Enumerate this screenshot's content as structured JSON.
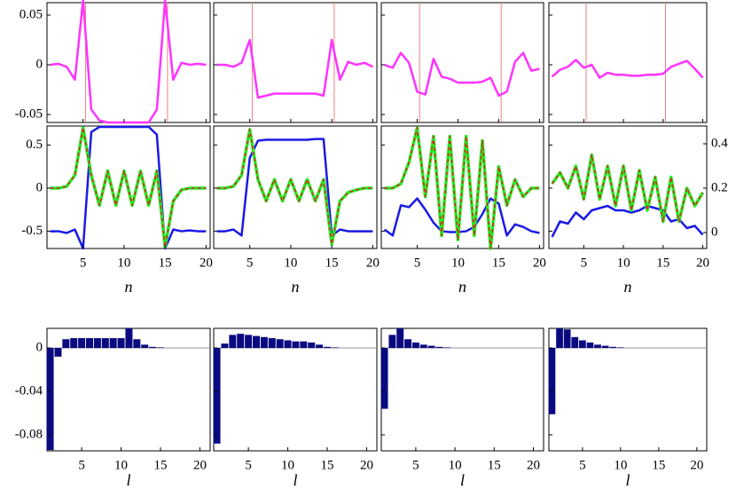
{
  "chart_data": [
    {
      "type": "line",
      "x": [
        1,
        2,
        3,
        4,
        5,
        6,
        7,
        8,
        9,
        10,
        11,
        12,
        13,
        14,
        15,
        16,
        17,
        18,
        19,
        20
      ],
      "xlim": [
        0.6,
        20.5
      ],
      "xticks": [
        5,
        10,
        15,
        20
      ],
      "ylim": [
        -0.058,
        0.0625
      ],
      "yticks": [
        -0.05,
        0,
        0.05
      ],
      "ytick_labels": true,
      "xtick_labels": false,
      "vlines": [
        5.3,
        15.3
      ],
      "vline_color": "#f08080",
      "series": [
        {
          "color": "#ff33ff",
          "values": [
            0,
            0.001,
            -0.002,
            -0.015,
            0.065,
            -0.045,
            -0.056,
            -0.058,
            -0.058,
            -0.058,
            -0.058,
            -0.058,
            -0.058,
            -0.045,
            0.065,
            -0.015,
            0.002,
            0,
            0.001,
            0
          ]
        }
      ]
    },
    {
      "type": "line",
      "x": [
        1,
        2,
        3,
        4,
        5,
        6,
        7,
        8,
        9,
        10,
        11,
        12,
        13,
        14,
        15,
        16,
        17,
        18,
        19,
        20
      ],
      "xlim": [
        0.6,
        20.5
      ],
      "xticks": [
        5,
        10,
        15,
        20
      ],
      "ylim": [
        -0.058,
        0.0625
      ],
      "yticks": [
        -0.05,
        0,
        0.05
      ],
      "ytick_labels": false,
      "xtick_labels": false,
      "vlines": [
        5.3,
        15.3
      ],
      "vline_color": "#f08080",
      "series": [
        {
          "color": "#ff33ff",
          "values": [
            0,
            0,
            -0.002,
            0.002,
            0.025,
            -0.033,
            -0.031,
            -0.029,
            -0.029,
            -0.029,
            -0.029,
            -0.029,
            -0.029,
            -0.031,
            0.025,
            -0.015,
            0.003,
            0,
            0.002,
            -0.002
          ]
        }
      ]
    },
    {
      "type": "line",
      "x": [
        1,
        2,
        3,
        4,
        5,
        6,
        7,
        8,
        9,
        10,
        11,
        12,
        13,
        14,
        15,
        16,
        17,
        18,
        19,
        20
      ],
      "xlim": [
        0.6,
        20.5
      ],
      "xticks": [
        5,
        10,
        15,
        20
      ],
      "ylim": [
        -0.058,
        0.0625
      ],
      "yticks": [
        -0.05,
        0,
        0.05
      ],
      "ytick_labels": false,
      "xtick_labels": false,
      "vlines": [
        5.3,
        15.3
      ],
      "vline_color": "#f08080",
      "series": [
        {
          "color": "#ff33ff",
          "values": [
            0,
            -0.003,
            0.012,
            0.002,
            -0.027,
            -0.03,
            0.006,
            -0.012,
            -0.014,
            -0.018,
            -0.018,
            -0.018,
            -0.017,
            -0.013,
            -0.031,
            -0.027,
            0.003,
            0.012,
            -0.006,
            -0.004
          ]
        }
      ]
    },
    {
      "type": "line",
      "x": [
        1,
        2,
        3,
        4,
        5,
        6,
        7,
        8,
        9,
        10,
        11,
        12,
        13,
        14,
        15,
        16,
        17,
        18,
        19,
        20
      ],
      "xlim": [
        0.6,
        20.5
      ],
      "xticks": [
        5,
        10,
        15,
        20
      ],
      "ylim": [
        -0.058,
        0.0625
      ],
      "yticks": [
        -0.05,
        0,
        0.05
      ],
      "ytick_labels": false,
      "xtick_labels": false,
      "vlines": [
        5.3,
        15.3
      ],
      "vline_color": "#f08080",
      "series": [
        {
          "color": "#ff33ff",
          "values": [
            -0.012,
            -0.005,
            -0.002,
            0.005,
            -0.003,
            0,
            -0.013,
            -0.008,
            -0.01,
            -0.01,
            -0.011,
            -0.011,
            -0.01,
            -0.01,
            -0.009,
            -0.002,
            0.001,
            0.004,
            -0.004,
            -0.013
          ]
        }
      ]
    },
    {
      "type": "line",
      "x": [
        1,
        2,
        3,
        4,
        5,
        6,
        7,
        8,
        9,
        10,
        11,
        12,
        13,
        14,
        15,
        16,
        17,
        18,
        19,
        20
      ],
      "xlim": [
        0.6,
        20.5
      ],
      "xticks": [
        5,
        10,
        15,
        20
      ],
      "ylim": [
        -0.7,
        0.72
      ],
      "yticks": [
        -0.5,
        0,
        0.5
      ],
      "ytick_labels": true,
      "xtick_labels": true,
      "x_label": "n",
      "series": [
        {
          "color": "#1a1ae6",
          "values": [
            -0.5,
            -0.5,
            -0.52,
            -0.48,
            -0.7,
            0.65,
            0.71,
            0.71,
            0.71,
            0.71,
            0.71,
            0.71,
            0.71,
            0.62,
            -0.7,
            -0.48,
            -0.5,
            -0.49,
            -0.5,
            -0.5
          ]
        },
        {
          "color": "#22ee22",
          "width": 3.5,
          "values": [
            0,
            0,
            0.02,
            0.15,
            0.7,
            0.15,
            -0.2,
            0.2,
            -0.2,
            0.2,
            -0.2,
            0.2,
            -0.2,
            0.2,
            -0.68,
            -0.15,
            -0.02,
            0,
            0,
            0
          ]
        },
        {
          "color": "#cc3322",
          "dashed": true,
          "values": [
            0,
            0,
            0.02,
            0.15,
            0.7,
            0.15,
            -0.2,
            0.2,
            -0.2,
            0.2,
            -0.2,
            0.2,
            -0.2,
            0.2,
            -0.68,
            -0.15,
            -0.02,
            0,
            0,
            0
          ]
        }
      ]
    },
    {
      "type": "line",
      "x": [
        1,
        2,
        3,
        4,
        5,
        6,
        7,
        8,
        9,
        10,
        11,
        12,
        13,
        14,
        15,
        16,
        17,
        18,
        19,
        20
      ],
      "xlim": [
        0.6,
        20.5
      ],
      "xticks": [
        5,
        10,
        15,
        20
      ],
      "ylim": [
        -0.7,
        0.72
      ],
      "yticks": [
        -0.5,
        0,
        0.5
      ],
      "ytick_labels": false,
      "xtick_labels": true,
      "x_label": "n",
      "series": [
        {
          "color": "#1a1ae6",
          "values": [
            -0.5,
            -0.5,
            -0.48,
            -0.55,
            0.35,
            0.55,
            0.56,
            0.56,
            0.56,
            0.56,
            0.56,
            0.56,
            0.57,
            0.57,
            -0.55,
            -0.48,
            -0.5,
            -0.5,
            -0.5,
            -0.5
          ]
        },
        {
          "color": "#22ee22",
          "width": 3.5,
          "values": [
            0,
            0,
            0.02,
            0.15,
            0.68,
            0.1,
            -0.15,
            0.1,
            -0.15,
            0.1,
            -0.15,
            0.1,
            -0.15,
            0.1,
            -0.65,
            -0.15,
            -0.05,
            -0.02,
            0,
            0
          ]
        },
        {
          "color": "#cc3322",
          "dashed": true,
          "values": [
            0,
            0,
            0.02,
            0.15,
            0.68,
            0.1,
            -0.15,
            0.1,
            -0.15,
            0.1,
            -0.15,
            0.1,
            -0.15,
            0.1,
            -0.65,
            -0.15,
            -0.05,
            -0.02,
            0,
            0
          ]
        }
      ]
    },
    {
      "type": "line",
      "x": [
        1,
        2,
        3,
        4,
        5,
        6,
        7,
        8,
        9,
        10,
        11,
        12,
        13,
        14,
        15,
        16,
        17,
        18,
        19,
        20
      ],
      "xlim": [
        0.6,
        20.5
      ],
      "xticks": [
        5,
        10,
        15,
        20
      ],
      "ylim": [
        -0.7,
        0.72
      ],
      "yticks": [
        -0.5,
        0,
        0.5
      ],
      "ytick_labels": false,
      "xtick_labels": true,
      "x_label": "n",
      "series": [
        {
          "color": "#1a1ae6",
          "values": [
            -0.48,
            -0.55,
            -0.2,
            -0.22,
            -0.12,
            -0.25,
            -0.4,
            -0.5,
            -0.51,
            -0.51,
            -0.5,
            -0.45,
            -0.3,
            -0.12,
            -0.18,
            -0.55,
            -0.42,
            -0.45,
            -0.5,
            -0.52
          ]
        },
        {
          "color": "#22ee22",
          "width": 3.5,
          "values": [
            0,
            0,
            0.05,
            0.3,
            0.7,
            -0.1,
            0.6,
            -0.55,
            0.6,
            -0.6,
            0.6,
            -0.55,
            0.55,
            -0.7,
            0.25,
            -0.2,
            0.1,
            -0.1,
            0,
            0
          ]
        },
        {
          "color": "#cc3322",
          "dashed": true,
          "values": [
            0,
            0,
            0.05,
            0.3,
            0.7,
            -0.1,
            0.6,
            -0.55,
            0.6,
            -0.6,
            0.6,
            -0.55,
            0.55,
            -0.7,
            0.25,
            -0.2,
            0.1,
            -0.1,
            0,
            0
          ]
        }
      ]
    },
    {
      "type": "line",
      "x": [
        1,
        2,
        3,
        4,
        5,
        6,
        7,
        8,
        9,
        10,
        11,
        12,
        13,
        14,
        15,
        16,
        17,
        18,
        19,
        20
      ],
      "xlim": [
        0.6,
        20.5
      ],
      "xticks": [
        5,
        10,
        15,
        20
      ],
      "ylim": [
        -0.7,
        0.72
      ],
      "yticks": [
        -0.5,
        0,
        0.5
      ],
      "ytick_labels": false,
      "xtick_labels": true,
      "x_label": "n",
      "y2lim": [
        -0.072,
        0.48
      ],
      "y2ticks": [
        0,
        0.2,
        0.4
      ],
      "series": [
        {
          "color": "#1a1ae6",
          "axis": "y2",
          "values": [
            -0.02,
            0.05,
            0.04,
            0.09,
            0.06,
            0.1,
            0.11,
            0.12,
            0.1,
            0.1,
            0.09,
            0.1,
            0.12,
            0.11,
            0.1,
            0.05,
            0.06,
            0.02,
            0.03,
            -0.01
          ]
        },
        {
          "color": "#22ee22",
          "width": 3.5,
          "axis": "y2",
          "values": [
            0.22,
            0.27,
            0.2,
            0.3,
            0.15,
            0.35,
            0.15,
            0.3,
            0.12,
            0.3,
            0.1,
            0.28,
            0.1,
            0.25,
            0.05,
            0.25,
            0.05,
            0.2,
            0.12,
            0.18
          ]
        },
        {
          "color": "#cc3322",
          "dashed": true,
          "axis": "y2",
          "values": [
            0.22,
            0.27,
            0.2,
            0.3,
            0.15,
            0.35,
            0.15,
            0.3,
            0.12,
            0.3,
            0.1,
            0.28,
            0.1,
            0.25,
            0.05,
            0.25,
            0.05,
            0.2,
            0.12,
            0.18
          ]
        }
      ]
    },
    {
      "type": "bar",
      "x": [
        1,
        2,
        3,
        4,
        5,
        6,
        7,
        8,
        9,
        10,
        11,
        12,
        13,
        14,
        15,
        16,
        17,
        18,
        19,
        20,
        21
      ],
      "xlim": [
        0.6,
        21.3
      ],
      "xticks": [
        5,
        10,
        15,
        20
      ],
      "ylim": [
        -0.0947,
        0.018
      ],
      "yticks": [
        -0.08,
        -0.04,
        0
      ],
      "ytick_labels": true,
      "xtick_labels": true,
      "x_label": "l",
      "color": "#0a0a80",
      "values": [
        -0.094,
        -0.008,
        0.008,
        0.009,
        0.009,
        0.009,
        0.009,
        0.009,
        0.009,
        0.009,
        0.018,
        0.008,
        0.003,
        0.001,
        0.0005,
        0,
        0,
        0,
        0,
        0,
        0
      ]
    },
    {
      "type": "bar",
      "x": [
        1,
        2,
        3,
        4,
        5,
        6,
        7,
        8,
        9,
        10,
        11,
        12,
        13,
        14,
        15,
        16,
        17,
        18,
        19,
        20,
        21
      ],
      "xlim": [
        0.6,
        21.3
      ],
      "xticks": [
        5,
        10,
        15,
        20
      ],
      "ylim": [
        -0.0947,
        0.018
      ],
      "yticks": [
        -0.08,
        -0.04,
        0
      ],
      "ytick_labels": false,
      "xtick_labels": true,
      "x_label": "l",
      "color": "#0a0a80",
      "values": [
        -0.088,
        0.004,
        0.012,
        0.013,
        0.012,
        0.011,
        0.01,
        0.009,
        0.008,
        0.007,
        0.006,
        0.006,
        0.005,
        0.003,
        0.001,
        0.0005,
        0,
        0,
        0,
        0,
        0
      ]
    },
    {
      "type": "bar",
      "x": [
        1,
        2,
        3,
        4,
        5,
        6,
        7,
        8,
        9,
        10,
        11,
        12,
        13,
        14,
        15,
        16,
        17,
        18,
        19,
        20,
        21
      ],
      "xlim": [
        0.6,
        21.3
      ],
      "xticks": [
        5,
        10,
        15,
        20
      ],
      "ylim": [
        -0.0947,
        0.018
      ],
      "yticks": [
        -0.08,
        -0.04,
        0
      ],
      "ytick_labels": false,
      "xtick_labels": true,
      "x_label": "l",
      "color": "#0a0a80",
      "values": [
        -0.056,
        0.012,
        0.018,
        0.008,
        0.005,
        0.003,
        0.002,
        0.001,
        0.0005,
        0,
        0,
        0,
        0,
        0,
        0,
        0,
        0,
        0,
        0,
        0,
        0
      ]
    },
    {
      "type": "bar",
      "x": [
        1,
        2,
        3,
        4,
        5,
        6,
        7,
        8,
        9,
        10,
        11,
        12,
        13,
        14,
        15,
        16,
        17,
        18,
        19,
        20,
        21
      ],
      "xlim": [
        0.6,
        21.3
      ],
      "xticks": [
        5,
        10,
        15,
        20
      ],
      "ylim": [
        -0.0947,
        0.018
      ],
      "yticks": [
        -0.08,
        -0.04,
        0
      ],
      "ytick_labels": false,
      "xtick_labels": true,
      "x_label": "l",
      "color": "#0a0a80",
      "values": [
        -0.061,
        0.018,
        0.017,
        0.01,
        0.007,
        0.005,
        0.003,
        0.002,
        0.001,
        0.0005,
        0,
        0,
        0,
        0,
        0,
        0,
        0,
        0,
        0,
        0,
        0
      ]
    }
  ]
}
